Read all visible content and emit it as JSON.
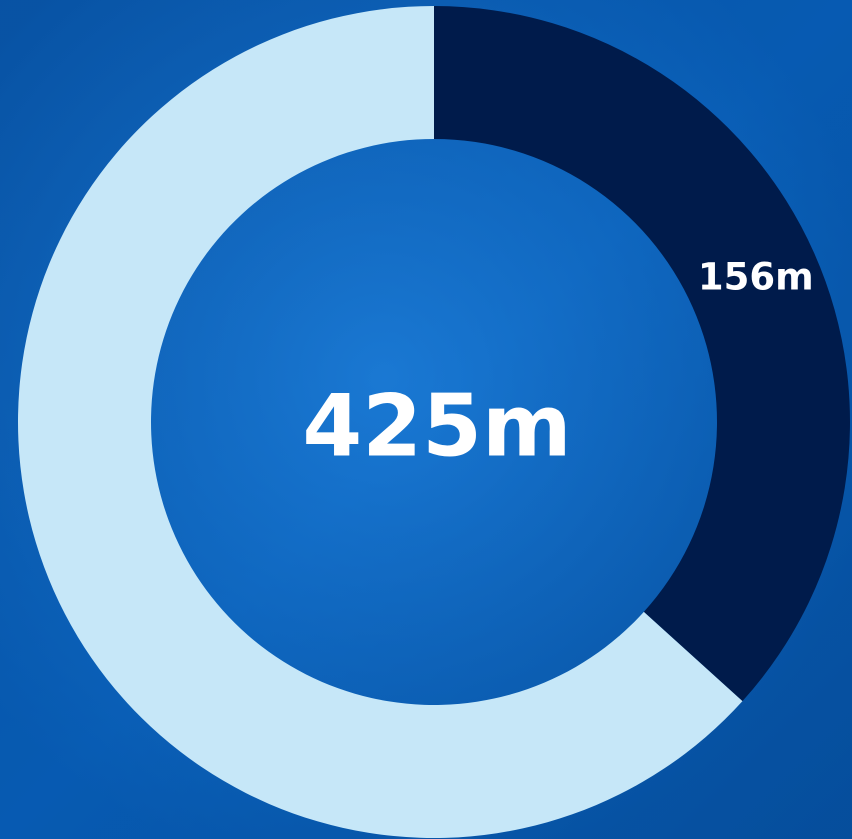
{
  "chart_data": {
    "type": "donut",
    "center_label": "425m",
    "values": [
      156,
      269
    ],
    "value_labels": [
      "156m",
      null
    ],
    "colors": [
      "#001b4b",
      "#c6e7f8"
    ]
  }
}
